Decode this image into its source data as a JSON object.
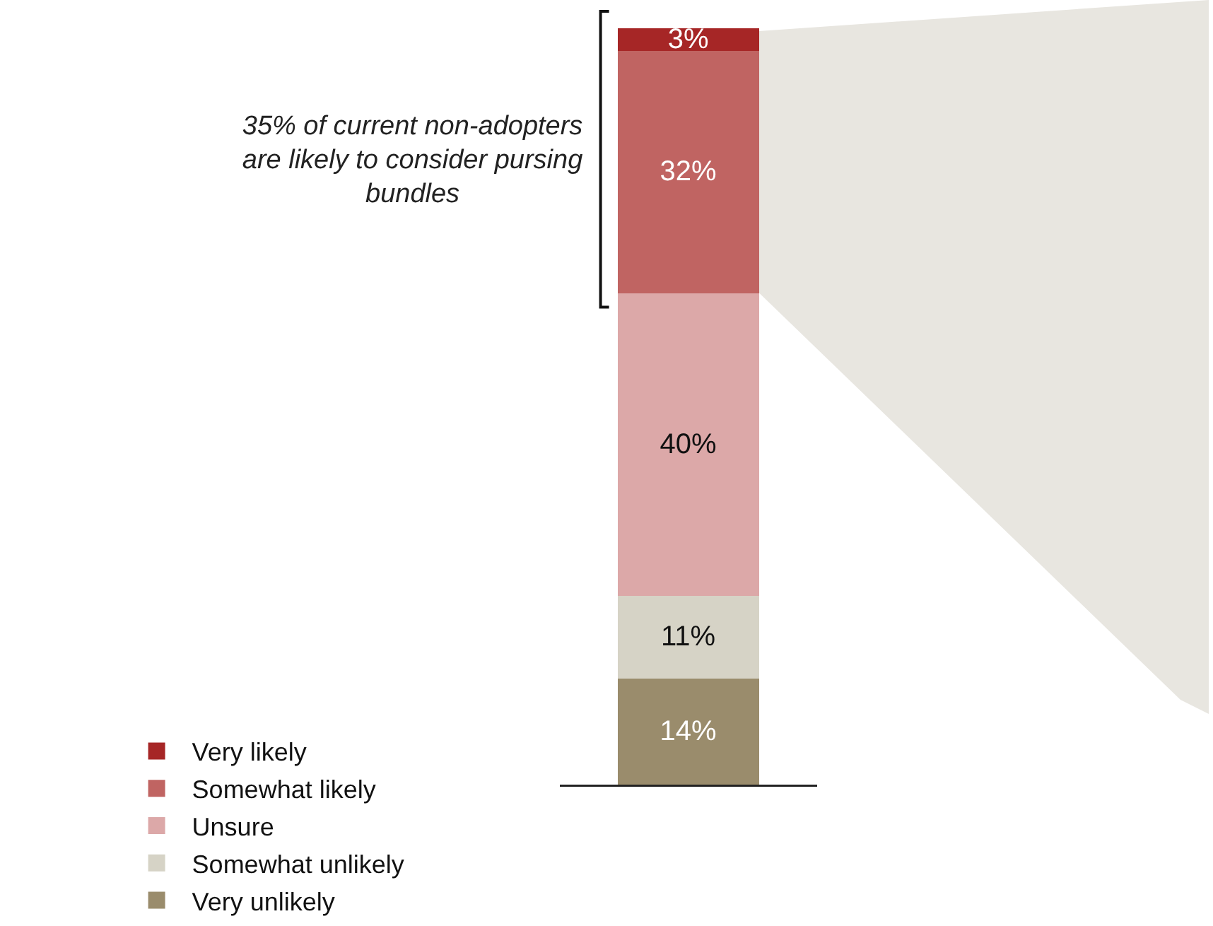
{
  "chart_data": {
    "type": "bar",
    "stacked": true,
    "categories": [
      null
    ],
    "tick_labels": false,
    "legend": "bottom",
    "annotations": [
      "35% of current non-adopters are likely to consider pursing bundles"
    ],
    "series": [
      {
        "name": "Very unlikely",
        "color": "#9a8c6c",
        "values": [
          14
        ],
        "value_labels": [
          "14%"
        ]
      },
      {
        "name": "Somewhat unlikely",
        "color": "#d6d3c6",
        "values": [
          11
        ],
        "value_labels": [
          "11%"
        ]
      },
      {
        "name": "Unsure",
        "color": "#dca8a8",
        "values": [
          40
        ],
        "value_labels": [
          "40%"
        ]
      },
      {
        "name": "Somewhat likely",
        "color": "#c06462",
        "values": [
          32
        ],
        "value_labels": [
          "32%"
        ]
      },
      {
        "name": "Very likely",
        "color": "#a62626",
        "values": [
          3
        ],
        "value_labels": [
          "3%"
        ]
      }
    ]
  }
}
